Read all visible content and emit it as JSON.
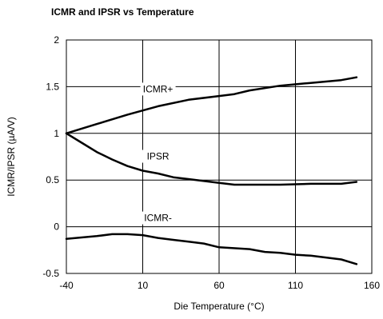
{
  "chart_data": {
    "type": "line",
    "title": "ICMR and IPSR vs Temperature",
    "xlabel": "Die Temperature (°C)",
    "ylabel": "ICMR/IPSR (µA/V)",
    "xlim": [
      -40,
      160
    ],
    "ylim": [
      -0.5,
      2
    ],
    "x_ticks": [
      -40,
      10,
      60,
      110,
      160
    ],
    "y_ticks": [
      -0.5,
      0,
      0.5,
      1,
      1.5,
      2
    ],
    "x_tick_labels": [
      "-40",
      "10",
      "60",
      "110",
      "160"
    ],
    "y_tick_labels": [
      "-0.5",
      "0",
      "0.5",
      "1",
      "1.5",
      "2"
    ],
    "grid": true,
    "series": [
      {
        "name": "ICMR+",
        "x": [
          -40,
          -20,
          0,
          20,
          40,
          60,
          70,
          80,
          100,
          120,
          140,
          150
        ],
        "y": [
          1.0,
          1.1,
          1.2,
          1.29,
          1.36,
          1.4,
          1.42,
          1.46,
          1.51,
          1.54,
          1.57,
          1.6
        ],
        "label_at": [
          20,
          1.44
        ]
      },
      {
        "name": "IPSR",
        "x": [
          -40,
          -30,
          -20,
          -10,
          0,
          10,
          20,
          30,
          40,
          50,
          60,
          70,
          80,
          100,
          120,
          140,
          150
        ],
        "y": [
          1.0,
          0.9,
          0.8,
          0.72,
          0.65,
          0.6,
          0.57,
          0.53,
          0.51,
          0.49,
          0.47,
          0.45,
          0.45,
          0.45,
          0.46,
          0.46,
          0.48
        ],
        "label_at": [
          20,
          0.72
        ]
      },
      {
        "name": "ICMR-",
        "x": [
          -40,
          -20,
          -10,
          0,
          10,
          20,
          30,
          40,
          50,
          60,
          80,
          90,
          100,
          110,
          120,
          130,
          140,
          150
        ],
        "y": [
          -0.13,
          -0.1,
          -0.08,
          -0.08,
          -0.09,
          -0.12,
          -0.14,
          -0.16,
          -0.18,
          -0.22,
          -0.24,
          -0.27,
          -0.28,
          -0.3,
          -0.31,
          -0.33,
          -0.35,
          -0.4
        ],
        "label_at": [
          20,
          0.06
        ]
      }
    ]
  }
}
